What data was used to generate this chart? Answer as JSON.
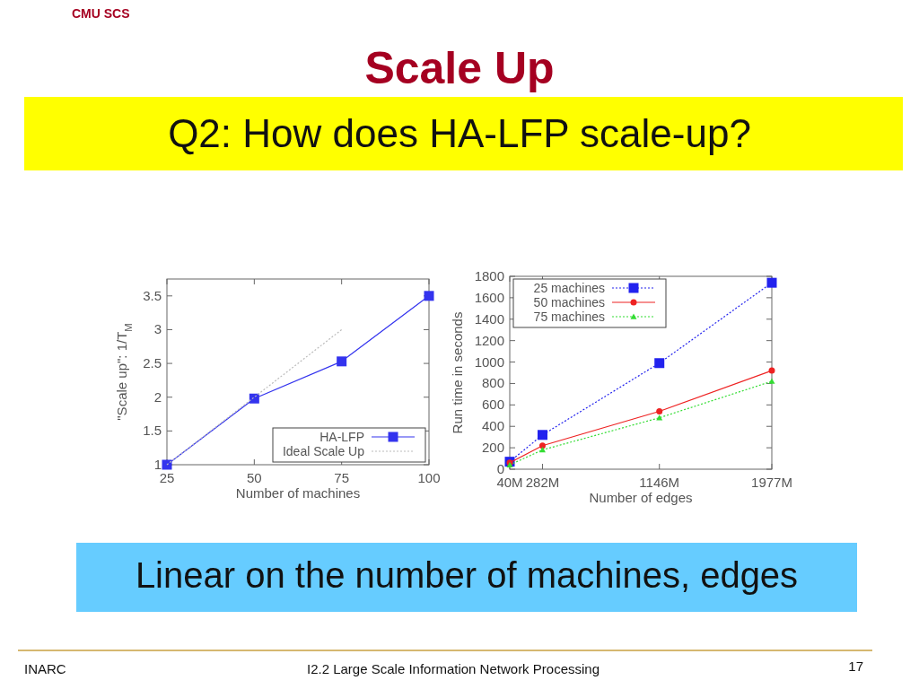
{
  "chart_data": [
    {
      "type": "line",
      "title": "Scale Up",
      "subtitle": "Q2: How does HA-LFP scale-up?",
      "xlabel": "Number of machines",
      "ylabel": "\"Scale up\": 1/T$_{M}$",
      "annotations": [
        "CMU SCS",
        "Linear on the number of machines, edges",
        "INARC",
        "I2.2 Large Scale Information Network Processing",
        "17"
      ],
      "x": [
        25,
        50,
        75,
        100
      ],
      "series": [
        {
          "name": "HA-LFP",
          "color": "#3333ee",
          "values": [
            1,
            1.98,
            2.53,
            3.5
          ],
          "marker": "square",
          "line_style": "solid"
        },
        {
          "name": "Ideal Scale Up",
          "color": "#bbbbbb",
          "x": [
            25,
            50,
            75
          ],
          "values": [
            1,
            2,
            3
          ],
          "marker": "none",
          "line_style": "dotted"
        }
      ],
      "xlim": [
        25,
        100
      ],
      "xticks": [
        25,
        50,
        75,
        100
      ],
      "ylim": [
        1,
        3.75
      ],
      "yticks": [
        1,
        1.5,
        2,
        2.5,
        3,
        3.5
      ],
      "grid": false,
      "legend": "bottom right"
    },
    {
      "type": "line",
      "xlabel": "Number of edges",
      "ylabel": "Run time in seconds",
      "x": [
        40,
        282,
        1146,
        1977
      ],
      "series": [
        {
          "name": "25 machines",
          "color": "#2222ee",
          "values": [
            70,
            320,
            990,
            1740
          ],
          "marker": "square",
          "line_style": "dotted"
        },
        {
          "name": "50 machines",
          "color": "#ee2222",
          "values": [
            60,
            220,
            540,
            920
          ],
          "marker": "circle",
          "line_style": "solid"
        },
        {
          "name": "75 machines",
          "color": "#33dd33",
          "values": [
            40,
            180,
            480,
            820
          ],
          "marker": "triangle",
          "line_style": "dotted"
        }
      ],
      "xlim": [
        40,
        1977
      ],
      "xticks": [
        {
          "value": 40,
          "label": "40M"
        },
        {
          "value": 282,
          "label": "282M"
        },
        {
          "value": 1146,
          "label": "1146M"
        },
        {
          "value": 1977,
          "label": "1977M"
        }
      ],
      "ylim": [
        0,
        1800
      ],
      "yticks": [
        0,
        200,
        400,
        600,
        800,
        1000,
        1200,
        1400,
        1600,
        1800
      ],
      "grid": false,
      "legend": "top left"
    }
  ]
}
